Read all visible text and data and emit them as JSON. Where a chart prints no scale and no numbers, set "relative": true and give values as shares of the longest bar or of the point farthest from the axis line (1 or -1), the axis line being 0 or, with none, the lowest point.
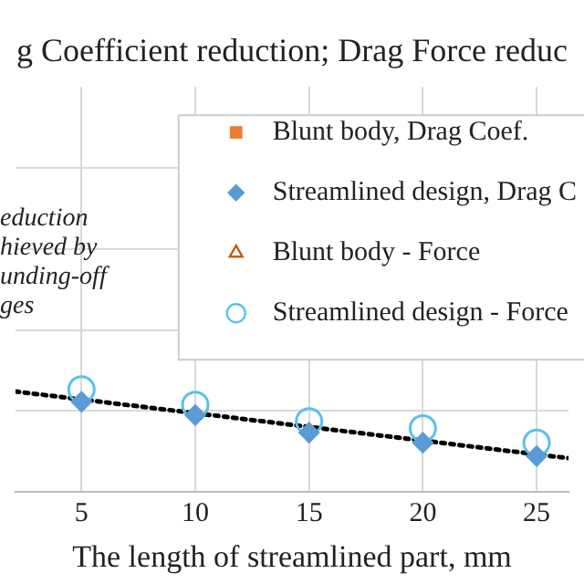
{
  "chart_data": {
    "type": "scatter",
    "title": "g Coefficient reduction; Drag Force reduc",
    "xlabel": "The length of streamlined part, mm",
    "annotations": [
      "eduction\nhieved by\nunding-off\nges"
    ],
    "relative": true,
    "xlim": [
      2.1,
      26.4
    ],
    "xticks": [
      5,
      10,
      15,
      20,
      25
    ],
    "x": [
      5,
      10,
      15,
      20,
      25
    ],
    "grid": true,
    "tick_labels": "x",
    "legend": "top right",
    "series": [
      {
        "name": "Blunt body, Drag Coef.",
        "color": "#ed7d31",
        "marker": "square",
        "values": [
          null,
          null,
          null,
          null,
          null
        ]
      },
      {
        "name": "Streamlined design, Drag C",
        "color": "#5b9bd5",
        "marker": "diamond",
        "values": [
          0.88,
          0.75,
          0.58,
          0.48,
          0.35
        ]
      },
      {
        "name": "Blunt body - Force",
        "color": "#c55a11",
        "marker": "triangle",
        "values": [
          null,
          null,
          null,
          null,
          null
        ]
      },
      {
        "name": "Streamlined design - Force",
        "color": "#5bc0eb",
        "marker": "circle",
        "values": [
          1,
          0.85,
          0.69,
          0.62,
          0.48
        ]
      },
      {
        "type": "line",
        "color": "#000000",
        "line_style": "dotted",
        "marker": "none",
        "x": [
          2.1,
          26.4
        ],
        "values": [
          0.98,
          0.33
        ]
      }
    ]
  }
}
